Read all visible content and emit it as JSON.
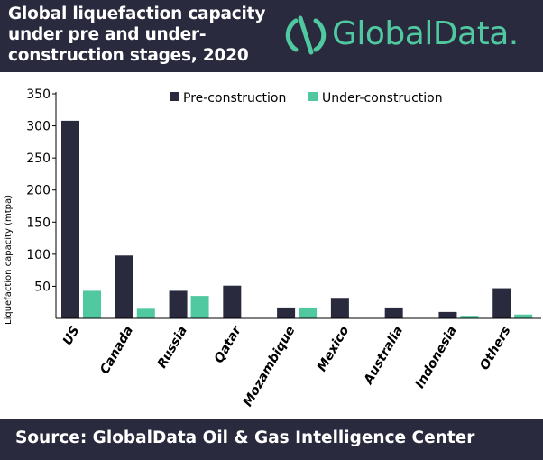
{
  "header": {
    "title_lines": [
      "Global liquefaction capacity",
      "under pre and under-",
      "construction stages, 2020"
    ],
    "logo_text": "GlobalData."
  },
  "footer": {
    "source": "Source: GlobalData Oil & Gas Intelligence Center"
  },
  "colors": {
    "header_bg": "#2a2a3e",
    "brand_green": "#50c8a0",
    "pre": "#2a2a3e",
    "under": "#50c8a0"
  },
  "chart_data": {
    "type": "bar",
    "title": "",
    "xlabel": "",
    "ylabel": "Liquefaction capacity (mtpa)",
    "ylim": [
      0,
      350
    ],
    "yticks": [
      50,
      100,
      150,
      200,
      250,
      300,
      350
    ],
    "grid": false,
    "legend_position": "top",
    "categories": [
      "US",
      "Canada",
      "Russia",
      "Qatar",
      "Mozambique",
      "Mexico",
      "Australia",
      "Indonesia",
      "Others"
    ],
    "series": [
      {
        "name": "Pre-construction",
        "color": "#2a2a3e",
        "values": [
          308,
          98,
          43,
          51,
          17,
          32,
          17,
          10,
          47
        ]
      },
      {
        "name": "Under-construction",
        "color": "#50c8a0",
        "values": [
          43,
          15,
          35,
          0,
          17,
          0,
          0,
          4,
          6
        ]
      }
    ]
  }
}
